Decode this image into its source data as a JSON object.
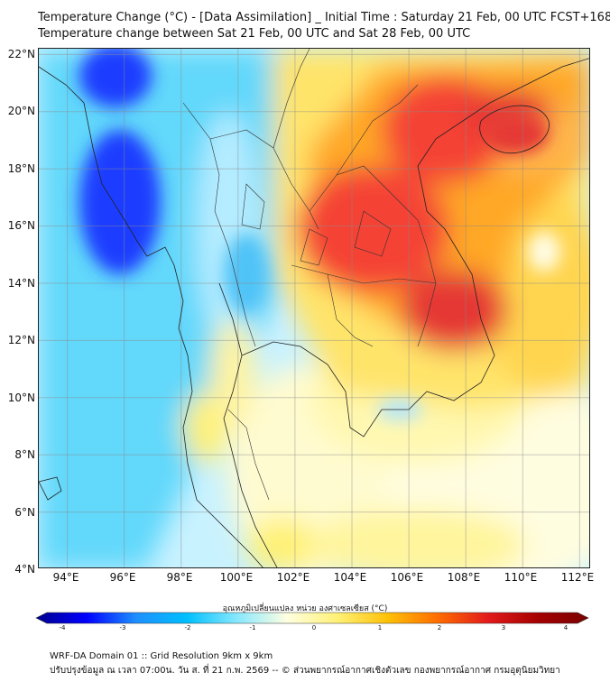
{
  "title": {
    "line1": "Temperature Change (°C) - [Data Assimilation] _ Initial Time : Saturday 21 Feb, 00 UTC FCST+168",
    "line2": "Temperature change between Sat 21 Feb, 00 UTC and Sat 28 Feb, 00 UTC"
  },
  "map": {
    "lat_labels": [
      "22°N",
      "20°N",
      "18°N",
      "16°N",
      "14°N",
      "12°N",
      "10°N",
      "8°N",
      "6°N",
      "4°N"
    ],
    "lon_labels": [
      "94°E",
      "96°E",
      "98°E",
      "100°E",
      "102°E",
      "104°E",
      "106°E",
      "108°E",
      "110°E",
      "112°E"
    ],
    "lat_range": [
      4,
      22.2
    ],
    "lon_range": [
      93,
      112.4
    ]
  },
  "colorbar": {
    "title": "อุณหภูมิเปลี่ยนแปลง หน่วย องศาเซลเซียส (°C)",
    "ticks": [
      "-4",
      "-3",
      "-2",
      "-1",
      "0",
      "1",
      "2",
      "3",
      "4"
    ],
    "range": [
      -4,
      4
    ],
    "colors": [
      "#00008b",
      "#0000ff",
      "#1e90ff",
      "#00bfff",
      "#87e8ff",
      "#ffffe0",
      "#fff176",
      "#ffc107",
      "#ff6d00",
      "#e31a1c",
      "#a50000",
      "#7a0000"
    ]
  },
  "footer": {
    "line1": "WRF-DA Domain 01 :: Grid Resolution 9km x 9km",
    "line2": "ปรับปรุงข้อมูล ณ เวลา 07:00น. วัน ส. ที่ 21 ก.พ. 2569 -- © ส่วนพยากรณ์อากาศเชิงตัวเลข กองพยากรณ์อากาศ กรมอุตุนิยมวิทยา"
  }
}
